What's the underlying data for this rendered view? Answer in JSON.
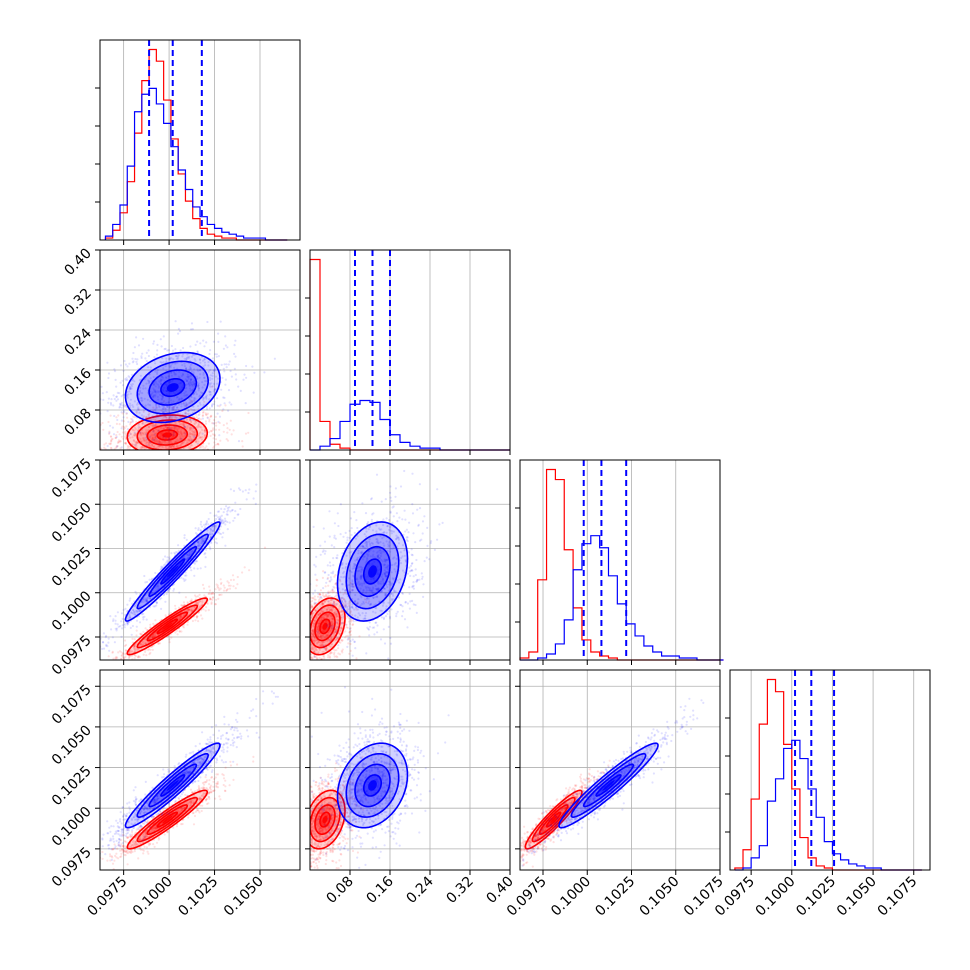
{
  "chart_data": {
    "type": "corner",
    "grid": true,
    "colors": {
      "series_a": "#ff0000",
      "series_b": "#0000ff",
      "frame": "#000000",
      "grid": "#b0b0b0"
    },
    "series": [
      {
        "color": "#ff0000",
        "means": [
          0.0999,
          0.03,
          0.0981,
          0.0993
        ],
        "sds": [
          0.0011,
          0.02,
          0.0008,
          0.0009
        ]
      },
      {
        "color": "#0000ff",
        "means": [
          0.1002,
          0.125,
          0.1012,
          0.1014
        ],
        "sds": [
          0.0013,
          0.035,
          0.0014,
          0.0013
        ]
      }
    ],
    "axes": [
      {
        "range": [
          0.0962,
          0.1072
        ],
        "ticks": [
          0.0975,
          0.1,
          0.1025,
          0.105
        ],
        "tick_labels": [
          "0.0975",
          "0.1000",
          "0.1025",
          "0.1050"
        ]
      },
      {
        "range": [
          0.0,
          0.4
        ],
        "ticks": [
          0.08,
          0.16,
          0.24,
          0.32,
          0.4
        ],
        "tick_labels": [
          "0.08",
          "0.16",
          "0.24",
          "0.32",
          "0.40"
        ]
      },
      {
        "range": [
          0.0962,
          0.1075
        ],
        "ticks": [
          0.0975,
          0.1,
          0.1025,
          0.105,
          0.1075
        ],
        "tick_labels": [
          "0.0975",
          "0.1000",
          "0.1025",
          "0.1050",
          "0.1075"
        ]
      },
      {
        "range": [
          0.0962,
          0.1085
        ],
        "ticks": [
          0.0975,
          0.1,
          0.1025,
          0.105,
          0.1075
        ],
        "tick_labels": [
          "0.0975",
          "0.1000",
          "0.1025",
          "0.1050",
          "0.1075"
        ]
      }
    ],
    "diagonal": [
      {
        "bins": [
          0.0965,
          0.0969,
          0.0973,
          0.0977,
          0.0981,
          0.0985,
          0.0989,
          0.0993,
          0.0997,
          0.1001,
          0.1005,
          0.1009,
          0.1013,
          0.1017,
          0.1021,
          0.1025,
          0.1029,
          0.1033,
          0.1037,
          0.1041,
          0.1045,
          0.1049,
          0.1053,
          0.1057,
          0.1061,
          0.1065
        ],
        "red": [
          1,
          5,
          14,
          30,
          55,
          82,
          98,
          92,
          72,
          52,
          34,
          20,
          11,
          6,
          3,
          2,
          1,
          1,
          0,
          0,
          0,
          0,
          0,
          0,
          0
        ],
        "blue": [
          2,
          8,
          18,
          38,
          66,
          75,
          78,
          70,
          60,
          48,
          36,
          26,
          17,
          12,
          8,
          6,
          4,
          3,
          2,
          1,
          1,
          1,
          0,
          0,
          0
        ],
        "quantiles": [
          0.0989,
          0.1002,
          0.1018
        ]
      },
      {
        "bins": [
          0.0,
          0.02,
          0.04,
          0.06,
          0.08,
          0.1,
          0.12,
          0.14,
          0.16,
          0.18,
          0.2,
          0.22,
          0.24,
          0.26,
          0.28,
          0.3,
          0.32,
          0.34,
          0.36,
          0.38,
          0.4
        ],
        "red": [
          100,
          15,
          3,
          1,
          0,
          0,
          0,
          0,
          0,
          0,
          0,
          0,
          0,
          0,
          0,
          0,
          0,
          0,
          0,
          0
        ],
        "blue": [
          0,
          2,
          6,
          15,
          24,
          26,
          25,
          16,
          8,
          4,
          2,
          1,
          1,
          0,
          0,
          0,
          0,
          0,
          0,
          0
        ],
        "quantiles": [
          0.09,
          0.125,
          0.16
        ]
      },
      {
        "bins": [
          0.0962,
          0.0967,
          0.0972,
          0.0977,
          0.0982,
          0.0987,
          0.0992,
          0.0997,
          0.1002,
          0.1007,
          0.1012,
          0.1017,
          0.1022,
          0.1027,
          0.1032,
          0.1037,
          0.1042,
          0.1047,
          0.1052,
          0.1057,
          0.1062,
          0.1067,
          0.1072,
          0.1077
        ],
        "red": [
          1,
          4,
          40,
          95,
          90,
          55,
          26,
          10,
          4,
          2,
          1,
          0,
          0,
          0,
          0,
          0,
          0,
          0,
          0,
          0,
          0,
          0,
          0
        ],
        "blue": [
          0,
          0,
          1,
          3,
          8,
          20,
          45,
          58,
          62,
          56,
          42,
          28,
          18,
          12,
          7,
          4,
          2,
          2,
          1,
          1,
          0,
          0,
          0
        ],
        "quantiles": [
          0.0998,
          0.1008,
          0.1022
        ]
      },
      {
        "bins": [
          0.0965,
          0.097,
          0.0975,
          0.098,
          0.0985,
          0.099,
          0.0995,
          0.1,
          0.1005,
          0.101,
          0.1015,
          0.102,
          0.1025,
          0.103,
          0.1035,
          0.104,
          0.1045,
          0.105,
          0.1055,
          0.106,
          0.1065,
          0.107,
          0.1075,
          0.108
        ],
        "red": [
          1,
          10,
          35,
          72,
          94,
          88,
          62,
          40,
          16,
          6,
          2,
          1,
          0,
          0,
          0,
          0,
          0,
          0,
          0,
          0,
          0,
          0,
          0
        ],
        "blue": [
          0,
          1,
          6,
          12,
          34,
          45,
          60,
          64,
          55,
          40,
          26,
          14,
          8,
          5,
          3,
          2,
          1,
          1,
          0,
          0,
          0,
          0,
          0
        ],
        "quantiles": [
          0.1002,
          0.1012,
          0.1026
        ]
      }
    ],
    "correlations": {
      "1,0": {
        "red": 0.1,
        "blue": 0.25
      },
      "2,0": {
        "red": 0.95,
        "blue": 0.97
      },
      "2,1": {
        "red": 0.3,
        "blue": 0.25
      },
      "3,0": {
        "red": 0.94,
        "blue": 0.95
      },
      "3,1": {
        "red": 0.3,
        "blue": 0.25
      },
      "3,2": {
        "red": 0.93,
        "blue": 0.95
      }
    }
  }
}
